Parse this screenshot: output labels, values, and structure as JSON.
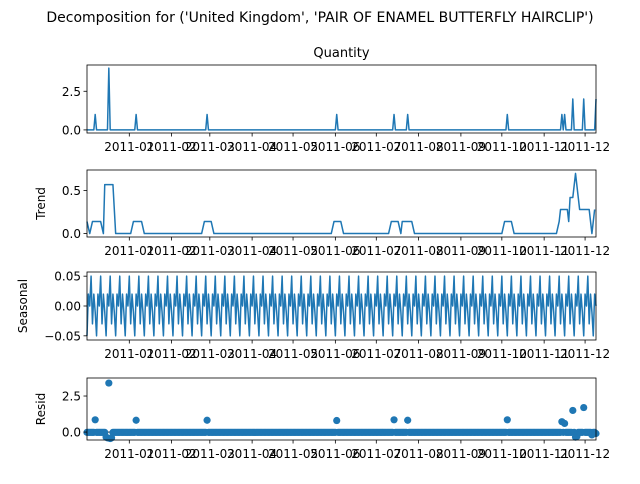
{
  "chart_data": {
    "type": "line",
    "title": "Decomposition for ('United Kingdom', 'PAIR OF ENAMEL BUTTERFLY HAIRCLIP')",
    "x_start": "2010-12-01",
    "x_end": "2011-12-09",
    "x_tick_labels": [
      "2011-01",
      "2011-02",
      "2011-03",
      "2011-04",
      "2011-05",
      "2011-06",
      "2011-07",
      "2011-08",
      "2011-09",
      "2011-10",
      "2011-11",
      "2011-12"
    ],
    "x_tick_dates": [
      "2011-01-01",
      "2011-02-01",
      "2011-03-01",
      "2011-04-01",
      "2011-05-01",
      "2011-06-01",
      "2011-07-01",
      "2011-08-01",
      "2011-09-01",
      "2011-10-01",
      "2011-11-01",
      "2011-12-01"
    ],
    "grid": false,
    "panels": [
      {
        "key": "observed",
        "title": "Quantity",
        "ylabel": "",
        "ylim": [
          -0.2,
          4.2
        ],
        "yticks": [
          0.0,
          2.5
        ],
        "ytick_labels": [
          "0.0",
          "2.5"
        ],
        "render": "line",
        "spikes": [
          [
            "2010-12-07",
            1
          ],
          [
            "2010-12-17",
            4
          ],
          [
            "2011-01-06",
            1
          ],
          [
            "2011-02-27",
            1
          ],
          [
            "2011-06-02",
            1
          ],
          [
            "2011-07-14",
            1
          ],
          [
            "2011-07-24",
            1
          ],
          [
            "2011-10-05",
            1
          ],
          [
            "2011-11-14",
            1
          ],
          [
            "2011-11-16",
            1
          ],
          [
            "2011-11-22",
            2
          ],
          [
            "2011-11-30",
            2
          ],
          [
            "2011-12-09",
            2
          ]
        ]
      },
      {
        "key": "trend",
        "title": "",
        "ylabel": "Trend",
        "ylim": [
          -0.04,
          0.74
        ],
        "yticks": [
          0.0,
          0.5
        ],
        "ytick_labels": [
          "0.0",
          "0.5"
        ],
        "render": "line",
        "points": [
          [
            "2010-12-01",
            0.14
          ],
          [
            "2010-12-03",
            0.0
          ],
          [
            "2010-12-05",
            0.14
          ],
          [
            "2010-12-11",
            0.14
          ],
          [
            "2010-12-13",
            0.0
          ],
          [
            "2010-12-14",
            0.57
          ],
          [
            "2010-12-20",
            0.57
          ],
          [
            "2010-12-22",
            0.0
          ],
          [
            "2011-01-02",
            0.0
          ],
          [
            "2011-01-04",
            0.14
          ],
          [
            "2011-01-10",
            0.14
          ],
          [
            "2011-01-12",
            0.0
          ],
          [
            "2011-02-23",
            0.0
          ],
          [
            "2011-02-25",
            0.14
          ],
          [
            "2011-03-02",
            0.14
          ],
          [
            "2011-03-04",
            0.0
          ],
          [
            "2011-05-29",
            0.0
          ],
          [
            "2011-05-31",
            0.14
          ],
          [
            "2011-06-05",
            0.14
          ],
          [
            "2011-06-07",
            0.0
          ],
          [
            "2011-07-10",
            0.0
          ],
          [
            "2011-07-12",
            0.14
          ],
          [
            "2011-07-17",
            0.14
          ],
          [
            "2011-07-19",
            0.0
          ],
          [
            "2011-07-20",
            0.14
          ],
          [
            "2011-07-27",
            0.14
          ],
          [
            "2011-07-29",
            0.0
          ],
          [
            "2011-10-01",
            0.0
          ],
          [
            "2011-10-03",
            0.14
          ],
          [
            "2011-10-08",
            0.14
          ],
          [
            "2011-10-10",
            0.0
          ],
          [
            "2011-11-10",
            0.0
          ],
          [
            "2011-11-12",
            0.14
          ],
          [
            "2011-11-13",
            0.28
          ],
          [
            "2011-11-18",
            0.28
          ],
          [
            "2011-11-19",
            0.14
          ],
          [
            "2011-11-20",
            0.42
          ],
          [
            "2011-11-22",
            0.42
          ],
          [
            "2011-11-24",
            0.7
          ],
          [
            "2011-11-26",
            0.42
          ],
          [
            "2011-11-27",
            0.28
          ],
          [
            "2011-12-04",
            0.28
          ],
          [
            "2011-12-06",
            0.0
          ],
          [
            "2011-12-08",
            0.28
          ]
        ]
      },
      {
        "key": "seasonal",
        "title": "",
        "ylabel": "Seasonal",
        "ylim": [
          -0.057,
          0.057
        ],
        "yticks": [
          -0.05,
          0.0,
          0.05
        ],
        "ytick_labels": [
          "−0.05",
          "0.00",
          "0.05"
        ],
        "render": "line",
        "period_days": 7,
        "weekly_pattern": [
          -0.05,
          0.02,
          0.0,
          0.05,
          -0.03,
          0.02,
          -0.01
        ]
      },
      {
        "key": "resid",
        "title": "",
        "ylabel": "Resid",
        "ylim": [
          -0.55,
          3.75
        ],
        "yticks": [
          0.0,
          2.5
        ],
        "ytick_labels": [
          "0.0",
          "2.5"
        ],
        "render": "scatter",
        "base_residual": -0.02,
        "outliers": [
          [
            "2010-12-07",
            0.85
          ],
          [
            "2010-12-15",
            -0.35
          ],
          [
            "2010-12-16",
            -0.4
          ],
          [
            "2010-12-17",
            3.4
          ],
          [
            "2010-12-18",
            -0.45
          ],
          [
            "2010-12-19",
            -0.4
          ],
          [
            "2011-01-06",
            0.82
          ],
          [
            "2011-02-27",
            0.82
          ],
          [
            "2011-06-02",
            0.8
          ],
          [
            "2011-07-14",
            0.85
          ],
          [
            "2011-07-24",
            0.82
          ],
          [
            "2011-10-05",
            0.85
          ],
          [
            "2011-11-14",
            0.72
          ],
          [
            "2011-11-16",
            0.6
          ],
          [
            "2011-11-22",
            1.5
          ],
          [
            "2011-11-24",
            -0.35
          ],
          [
            "2011-11-25",
            -0.3
          ],
          [
            "2011-11-30",
            1.7
          ],
          [
            "2011-12-06",
            -0.2
          ],
          [
            "2011-12-09",
            -0.1
          ]
        ]
      }
    ]
  }
}
